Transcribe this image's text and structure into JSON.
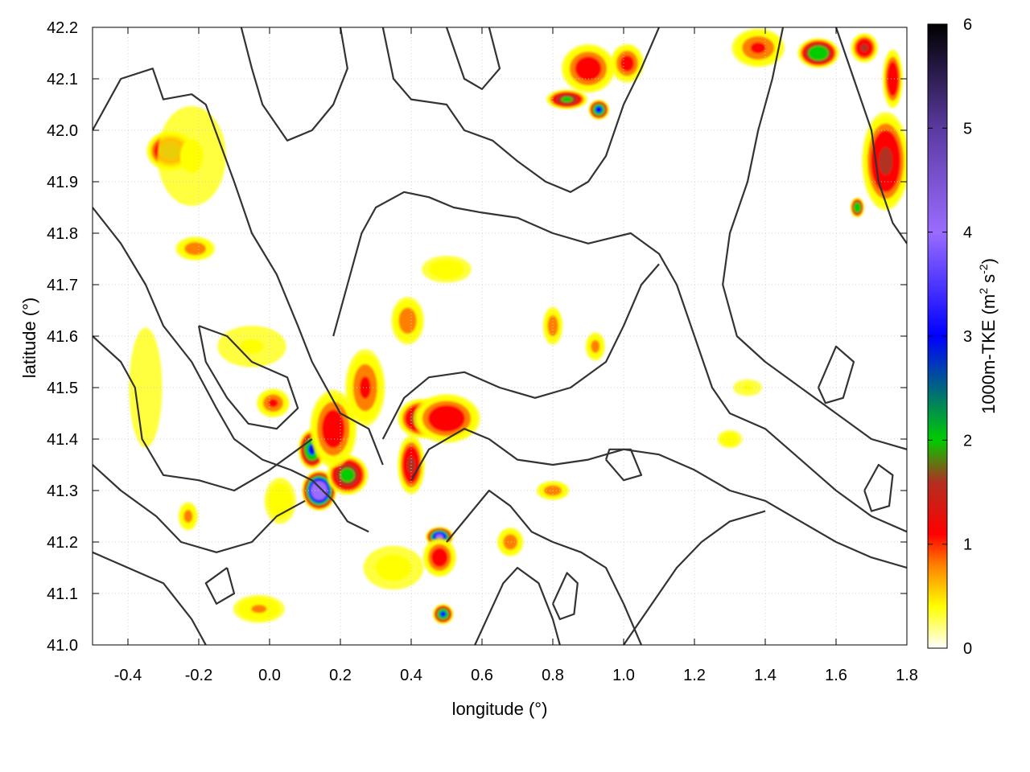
{
  "chart_data": {
    "type": "heatmap",
    "xlabel": "longitude (°)",
    "ylabel": "latitude (°)",
    "xlim": [
      -0.5,
      1.8
    ],
    "ylim": [
      41.0,
      42.2
    ],
    "xticks": [
      -0.4,
      -0.2,
      0.0,
      0.2,
      0.4,
      0.6,
      0.8,
      1.0,
      1.2,
      1.4,
      1.6,
      1.8
    ],
    "xtick_labels": [
      "-0.4",
      "-0.2",
      "0.0",
      "0.2",
      "0.4",
      "0.6",
      "0.8",
      "1.0",
      "1.2",
      "1.4",
      "1.6",
      "1.8"
    ],
    "yticks": [
      41.0,
      41.1,
      41.2,
      41.3,
      41.4,
      41.5,
      41.6,
      41.7,
      41.8,
      41.9,
      42.0,
      42.1,
      42.2
    ],
    "ytick_labels": [
      "41.0",
      "41.1",
      "41.2",
      "41.3",
      "41.4",
      "41.5",
      "41.6",
      "41.7",
      "41.8",
      "41.9",
      "42.0",
      "42.1",
      "42.2"
    ],
    "grid": true,
    "colorbar": {
      "label": "1000m-TKE (m",
      "label_sup1": "2",
      "label_mid": " s",
      "label_sup2": "-2",
      "label_end": ")",
      "range": [
        0,
        6
      ],
      "ticks": [
        0,
        1,
        2,
        3,
        4,
        5,
        6
      ],
      "tick_labels": [
        "0",
        "1",
        "2",
        "3",
        "4",
        "5",
        "6"
      ],
      "stops": [
        {
          "v": 0.0,
          "color": "#ffffff"
        },
        {
          "v": 0.4,
          "color": "#ffff00"
        },
        {
          "v": 0.8,
          "color": "#ff8000"
        },
        {
          "v": 1.1,
          "color": "#ff0000"
        },
        {
          "v": 1.6,
          "color": "#b03020"
        },
        {
          "v": 2.0,
          "color": "#00cc00"
        },
        {
          "v": 3.0,
          "color": "#0000ff"
        },
        {
          "v": 4.0,
          "color": "#9a6cff"
        },
        {
          "v": 5.0,
          "color": "#5a3aa0"
        },
        {
          "v": 6.0,
          "color": "#000000"
        }
      ]
    },
    "tke_blobs": [
      {
        "lon": -0.28,
        "lat": 41.96,
        "rx": 0.07,
        "ry": 0.04,
        "peak": 1.8
      },
      {
        "lon": -0.21,
        "lat": 41.77,
        "rx": 0.06,
        "ry": 0.025,
        "peak": 1.0
      },
      {
        "lon": -0.22,
        "lat": 41.95,
        "rx": 0.12,
        "ry": 0.12,
        "peak": 0.4
      },
      {
        "lon": 0.14,
        "lat": 41.3,
        "rx": 0.05,
        "ry": 0.04,
        "peak": 3.8
      },
      {
        "lon": 0.12,
        "lat": 41.38,
        "rx": 0.04,
        "ry": 0.04,
        "peak": 2.6
      },
      {
        "lon": 0.22,
        "lat": 41.33,
        "rx": 0.06,
        "ry": 0.04,
        "peak": 2.1
      },
      {
        "lon": 0.18,
        "lat": 41.42,
        "rx": 0.07,
        "ry": 0.08,
        "peak": 1.3
      },
      {
        "lon": 0.27,
        "lat": 41.5,
        "rx": 0.06,
        "ry": 0.08,
        "peak": 1.1
      },
      {
        "lon": 0.43,
        "lat": 41.44,
        "rx": 0.07,
        "ry": 0.04,
        "peak": 1.9
      },
      {
        "lon": 0.5,
        "lat": 41.44,
        "rx": 0.1,
        "ry": 0.05,
        "peak": 1.4
      },
      {
        "lon": 0.4,
        "lat": 41.35,
        "rx": 0.04,
        "ry": 0.06,
        "peak": 1.6
      },
      {
        "lon": 0.48,
        "lat": 41.21,
        "rx": 0.04,
        "ry": 0.02,
        "peak": 3.2
      },
      {
        "lon": 0.48,
        "lat": 41.17,
        "rx": 0.05,
        "ry": 0.04,
        "peak": 1.3
      },
      {
        "lon": 0.49,
        "lat": 41.06,
        "rx": 0.03,
        "ry": 0.02,
        "peak": 2.6
      },
      {
        "lon": 0.39,
        "lat": 41.63,
        "rx": 0.05,
        "ry": 0.05,
        "peak": 1.0
      },
      {
        "lon": 0.5,
        "lat": 41.73,
        "rx": 0.08,
        "ry": 0.03,
        "peak": 0.6
      },
      {
        "lon": 0.8,
        "lat": 41.62,
        "rx": 0.03,
        "ry": 0.04,
        "peak": 1.0
      },
      {
        "lon": 0.92,
        "lat": 41.58,
        "rx": 0.03,
        "ry": 0.03,
        "peak": 0.9
      },
      {
        "lon": 0.01,
        "lat": 41.47,
        "rx": 0.05,
        "ry": 0.03,
        "peak": 1.1
      },
      {
        "lon": -0.23,
        "lat": 41.25,
        "rx": 0.03,
        "ry": 0.03,
        "peak": 0.9
      },
      {
        "lon": 0.84,
        "lat": 42.06,
        "rx": 0.06,
        "ry": 0.02,
        "peak": 2.0
      },
      {
        "lon": 0.93,
        "lat": 42.04,
        "rx": 0.03,
        "ry": 0.02,
        "peak": 2.7
      },
      {
        "lon": 0.9,
        "lat": 42.12,
        "rx": 0.08,
        "ry": 0.05,
        "peak": 1.3
      },
      {
        "lon": 1.01,
        "lat": 42.13,
        "rx": 0.05,
        "ry": 0.04,
        "peak": 1.2
      },
      {
        "lon": 1.38,
        "lat": 42.16,
        "rx": 0.08,
        "ry": 0.04,
        "peak": 1.1
      },
      {
        "lon": 1.55,
        "lat": 42.15,
        "rx": 0.06,
        "ry": 0.03,
        "peak": 2.4
      },
      {
        "lon": 1.68,
        "lat": 42.16,
        "rx": 0.04,
        "ry": 0.03,
        "peak": 1.6
      },
      {
        "lon": 1.74,
        "lat": 41.94,
        "rx": 0.07,
        "ry": 0.1,
        "peak": 1.6
      },
      {
        "lon": 1.66,
        "lat": 41.85,
        "rx": 0.02,
        "ry": 0.02,
        "peak": 2.5
      },
      {
        "lon": 1.76,
        "lat": 42.1,
        "rx": 0.03,
        "ry": 0.06,
        "peak": 1.5
      },
      {
        "lon": 0.8,
        "lat": 41.3,
        "rx": 0.05,
        "ry": 0.02,
        "peak": 1.0
      },
      {
        "lon": 0.68,
        "lat": 41.2,
        "rx": 0.04,
        "ry": 0.03,
        "peak": 1.0
      },
      {
        "lon": 0.03,
        "lat": 41.28,
        "rx": 0.05,
        "ry": 0.05,
        "peak": 0.7
      },
      {
        "lon": -0.05,
        "lat": 41.58,
        "rx": 0.12,
        "ry": 0.05,
        "peak": 0.4
      },
      {
        "lon": -0.35,
        "lat": 41.5,
        "rx": 0.06,
        "ry": 0.15,
        "peak": 0.35
      },
      {
        "lon": 0.35,
        "lat": 41.15,
        "rx": 0.1,
        "ry": 0.05,
        "peak": 0.5
      },
      {
        "lon": -0.03,
        "lat": 41.07,
        "rx": 0.08,
        "ry": 0.03,
        "peak": 0.8
      },
      {
        "lon": 1.3,
        "lat": 41.4,
        "rx": 0.04,
        "ry": 0.02,
        "peak": 0.6
      },
      {
        "lon": 1.35,
        "lat": 41.5,
        "rx": 0.05,
        "ry": 0.02,
        "peak": 0.4
      }
    ],
    "contours": [
      [
        [
          -0.5,
          42.0
        ],
        [
          -0.42,
          42.1
        ],
        [
          -0.33,
          42.12
        ],
        [
          -0.3,
          42.06
        ],
        [
          -0.22,
          42.07
        ],
        [
          -0.18,
          42.05
        ],
        [
          -0.1,
          41.9
        ],
        [
          -0.05,
          41.8
        ],
        [
          0.02,
          41.72
        ],
        [
          0.08,
          41.62
        ],
        [
          0.12,
          41.55
        ],
        [
          0.16,
          41.5
        ],
        [
          0.2,
          41.45
        ],
        [
          0.28,
          41.42
        ],
        [
          0.32,
          41.35
        ]
      ],
      [
        [
          -0.5,
          41.85
        ],
        [
          -0.42,
          41.78
        ],
        [
          -0.35,
          41.7
        ],
        [
          -0.3,
          41.62
        ],
        [
          -0.22,
          41.55
        ],
        [
          -0.15,
          41.46
        ],
        [
          -0.1,
          41.4
        ],
        [
          -0.02,
          41.36
        ],
        [
          0.06,
          41.34
        ],
        [
          0.12,
          41.32
        ],
        [
          0.18,
          41.28
        ],
        [
          0.22,
          41.24
        ],
        [
          0.28,
          41.22
        ]
      ],
      [
        [
          -0.5,
          41.6
        ],
        [
          -0.42,
          41.55
        ],
        [
          -0.38,
          41.5
        ],
        [
          -0.36,
          41.4
        ],
        [
          -0.3,
          41.33
        ],
        [
          -0.2,
          41.32
        ],
        [
          -0.1,
          41.3
        ],
        [
          0.0,
          41.34
        ],
        [
          0.08,
          41.38
        ],
        [
          0.12,
          41.4
        ]
      ],
      [
        [
          -0.5,
          41.35
        ],
        [
          -0.42,
          41.3
        ],
        [
          -0.32,
          41.25
        ],
        [
          -0.25,
          41.2
        ],
        [
          -0.15,
          41.18
        ],
        [
          -0.05,
          41.2
        ],
        [
          0.02,
          41.25
        ],
        [
          0.1,
          41.28
        ]
      ],
      [
        [
          -0.5,
          41.18
        ],
        [
          -0.4,
          41.15
        ],
        [
          -0.3,
          41.12
        ],
        [
          -0.22,
          41.05
        ],
        [
          -0.18,
          41.0
        ]
      ],
      [
        [
          0.32,
          42.2
        ],
        [
          0.35,
          42.1
        ],
        [
          0.4,
          42.06
        ],
        [
          0.5,
          42.05
        ],
        [
          0.55,
          42.0
        ],
        [
          0.63,
          41.98
        ],
        [
          0.7,
          41.94
        ],
        [
          0.78,
          41.9
        ],
        [
          0.85,
          41.88
        ],
        [
          0.9,
          41.9
        ],
        [
          0.95,
          41.95
        ],
        [
          1.0,
          42.05
        ],
        [
          1.05,
          42.12
        ],
        [
          1.1,
          42.2
        ]
      ],
      [
        [
          0.18,
          41.6
        ],
        [
          0.22,
          41.7
        ],
        [
          0.26,
          41.8
        ],
        [
          0.3,
          41.85
        ],
        [
          0.38,
          41.88
        ],
        [
          0.45,
          41.87
        ],
        [
          0.52,
          41.85
        ],
        [
          0.6,
          41.84
        ],
        [
          0.7,
          41.83
        ],
        [
          0.8,
          41.8
        ],
        [
          0.9,
          41.78
        ],
        [
          1.02,
          41.8
        ],
        [
          1.1,
          41.76
        ],
        [
          1.15,
          41.7
        ],
        [
          1.2,
          41.6
        ],
        [
          1.25,
          41.5
        ],
        [
          1.3,
          41.45
        ],
        [
          1.4,
          41.42
        ],
        [
          1.5,
          41.36
        ],
        [
          1.6,
          41.3
        ],
        [
          1.7,
          41.25
        ],
        [
          1.8,
          41.22
        ]
      ],
      [
        [
          0.32,
          41.4
        ],
        [
          0.38,
          41.48
        ],
        [
          0.45,
          41.52
        ],
        [
          0.55,
          41.53
        ],
        [
          0.65,
          41.5
        ],
        [
          0.75,
          41.48
        ],
        [
          0.85,
          41.5
        ],
        [
          0.95,
          41.55
        ],
        [
          1.0,
          41.62
        ],
        [
          1.05,
          41.7
        ],
        [
          1.1,
          41.74
        ]
      ],
      [
        [
          0.4,
          41.32
        ],
        [
          0.45,
          41.38
        ],
        [
          0.55,
          41.42
        ],
        [
          0.62,
          41.4
        ],
        [
          0.7,
          41.36
        ],
        [
          0.8,
          41.35
        ],
        [
          0.9,
          41.36
        ],
        [
          1.0,
          41.38
        ],
        [
          1.1,
          41.37
        ],
        [
          1.2,
          41.34
        ],
        [
          1.3,
          41.3
        ],
        [
          1.4,
          41.28
        ],
        [
          1.5,
          41.24
        ],
        [
          1.6,
          41.2
        ],
        [
          1.7,
          41.17
        ],
        [
          1.8,
          41.15
        ]
      ],
      [
        [
          0.5,
          41.2
        ],
        [
          0.56,
          41.25
        ],
        [
          0.62,
          41.3
        ],
        [
          0.68,
          41.27
        ],
        [
          0.74,
          41.22
        ],
        [
          0.8,
          41.2
        ],
        [
          0.88,
          41.18
        ],
        [
          0.95,
          41.15
        ],
        [
          1.0,
          41.08
        ],
        [
          1.05,
          41.0
        ]
      ],
      [
        [
          0.58,
          41.0
        ],
        [
          0.62,
          41.06
        ],
        [
          0.66,
          41.12
        ],
        [
          0.7,
          41.15
        ],
        [
          0.76,
          41.12
        ],
        [
          0.8,
          41.05
        ],
        [
          0.82,
          41.0
        ]
      ],
      [
        [
          1.0,
          41.0
        ],
        [
          1.05,
          41.05
        ],
        [
          1.1,
          41.1
        ],
        [
          1.15,
          41.15
        ],
        [
          1.22,
          41.2
        ],
        [
          1.3,
          41.24
        ],
        [
          1.4,
          41.26
        ]
      ],
      [
        [
          1.45,
          42.2
        ],
        [
          1.42,
          42.1
        ],
        [
          1.38,
          42.0
        ],
        [
          1.35,
          41.9
        ],
        [
          1.3,
          41.8
        ],
        [
          1.28,
          41.7
        ],
        [
          1.32,
          41.6
        ],
        [
          1.4,
          41.55
        ],
        [
          1.5,
          41.5
        ],
        [
          1.6,
          41.45
        ],
        [
          1.7,
          41.4
        ],
        [
          1.8,
          41.38
        ]
      ],
      [
        [
          1.6,
          42.2
        ],
        [
          1.65,
          42.1
        ],
        [
          1.7,
          42.0
        ],
        [
          1.72,
          41.9
        ],
        [
          1.76,
          41.82
        ],
        [
          1.8,
          41.78
        ]
      ],
      [
        [
          0.62,
          42.2
        ],
        [
          0.65,
          42.12
        ],
        [
          0.6,
          42.08
        ],
        [
          0.55,
          42.1
        ],
        [
          0.52,
          42.16
        ],
        [
          0.5,
          42.2
        ]
      ],
      [
        [
          0.2,
          42.2
        ],
        [
          0.22,
          42.12
        ],
        [
          0.18,
          42.05
        ],
        [
          0.12,
          42.0
        ],
        [
          0.05,
          41.98
        ],
        [
          -0.02,
          42.05
        ],
        [
          -0.05,
          42.12
        ],
        [
          -0.08,
          42.2
        ]
      ],
      [
        [
          -0.2,
          41.62
        ],
        [
          -0.12,
          41.6
        ],
        [
          -0.05,
          41.55
        ],
        [
          0.05,
          41.52
        ],
        [
          0.08,
          41.46
        ],
        [
          0.02,
          41.42
        ],
        [
          -0.06,
          41.43
        ],
        [
          -0.12,
          41.48
        ],
        [
          -0.18,
          41.55
        ],
        [
          -0.2,
          41.62
        ]
      ],
      [
        [
          0.95,
          41.36
        ],
        [
          1.0,
          41.32
        ],
        [
          1.05,
          41.33
        ],
        [
          1.02,
          41.38
        ],
        [
          0.96,
          41.38
        ],
        [
          0.95,
          41.36
        ]
      ],
      [
        [
          1.55,
          41.5
        ],
        [
          1.6,
          41.58
        ],
        [
          1.65,
          41.55
        ],
        [
          1.62,
          41.48
        ],
        [
          1.57,
          41.47
        ],
        [
          1.55,
          41.5
        ]
      ],
      [
        [
          1.68,
          41.3
        ],
        [
          1.72,
          41.35
        ],
        [
          1.76,
          41.33
        ],
        [
          1.75,
          41.27
        ],
        [
          1.7,
          41.26
        ],
        [
          1.68,
          41.3
        ]
      ],
      [
        [
          0.8,
          41.08
        ],
        [
          0.84,
          41.14
        ],
        [
          0.87,
          41.12
        ],
        [
          0.86,
          41.06
        ],
        [
          0.82,
          41.05
        ],
        [
          0.8,
          41.08
        ]
      ],
      [
        [
          -0.12,
          41.15
        ],
        [
          -0.1,
          41.1
        ],
        [
          -0.15,
          41.08
        ],
        [
          -0.18,
          41.12
        ],
        [
          -0.12,
          41.15
        ]
      ]
    ]
  }
}
